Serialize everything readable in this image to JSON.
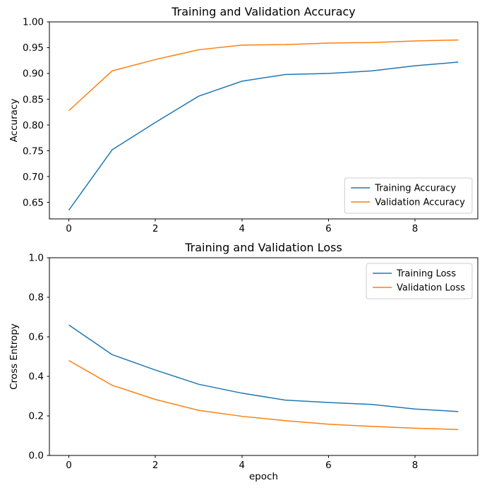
{
  "chart_data": [
    {
      "type": "line",
      "title": "Training and Validation Accuracy",
      "xlabel": "",
      "ylabel": "Accuracy",
      "x": [
        0,
        1,
        2,
        3,
        4,
        5,
        6,
        7,
        8,
        9
      ],
      "series": [
        {
          "name": "Training Accuracy",
          "color": "#1f77b4",
          "values": [
            0.635,
            0.752,
            0.805,
            0.856,
            0.885,
            0.898,
            0.9,
            0.905,
            0.915,
            0.922
          ]
        },
        {
          "name": "Validation Accuracy",
          "color": "#ff7f0e",
          "values": [
            0.828,
            0.905,
            0.927,
            0.946,
            0.955,
            0.956,
            0.959,
            0.96,
            0.963,
            0.965
          ]
        }
      ],
      "xlim": [
        -0.45,
        9.45
      ],
      "ylim": [
        0.618,
        1.0
      ],
      "xticks": [
        0,
        2,
        4,
        6,
        8
      ],
      "xtick_labels": [
        "0",
        "2",
        "4",
        "6",
        "8"
      ],
      "yticks": [
        0.65,
        0.7,
        0.75,
        0.8,
        0.85,
        0.9,
        0.95,
        1.0
      ],
      "ytick_labels": [
        "0.65",
        "0.70",
        "0.75",
        "0.80",
        "0.85",
        "0.90",
        "0.95",
        "1.00"
      ],
      "legend": {
        "visible": true,
        "position": "lower right"
      },
      "grid": false
    },
    {
      "type": "line",
      "title": "Training and Validation Loss",
      "xlabel": "epoch",
      "ylabel": "Cross Entropy",
      "x": [
        0,
        1,
        2,
        3,
        4,
        5,
        6,
        7,
        8,
        9
      ],
      "series": [
        {
          "name": "Training Loss",
          "color": "#1f77b4",
          "values": [
            0.66,
            0.51,
            0.432,
            0.36,
            0.315,
            0.28,
            0.268,
            0.258,
            0.235,
            0.222
          ]
        },
        {
          "name": "Validation Loss",
          "color": "#ff7f0e",
          "values": [
            0.48,
            0.355,
            0.283,
            0.228,
            0.198,
            0.176,
            0.158,
            0.147,
            0.138,
            0.131
          ]
        }
      ],
      "xlim": [
        -0.45,
        9.45
      ],
      "ylim": [
        0.0,
        1.0
      ],
      "xticks": [
        0,
        2,
        4,
        6,
        8
      ],
      "xtick_labels": [
        "0",
        "2",
        "4",
        "6",
        "8"
      ],
      "yticks": [
        0.0,
        0.2,
        0.4,
        0.6,
        0.8,
        1.0
      ],
      "ytick_labels": [
        "0.0",
        "0.2",
        "0.4",
        "0.6",
        "0.8",
        "1.0"
      ],
      "legend": {
        "visible": true,
        "position": "upper right"
      },
      "grid": false
    }
  ]
}
